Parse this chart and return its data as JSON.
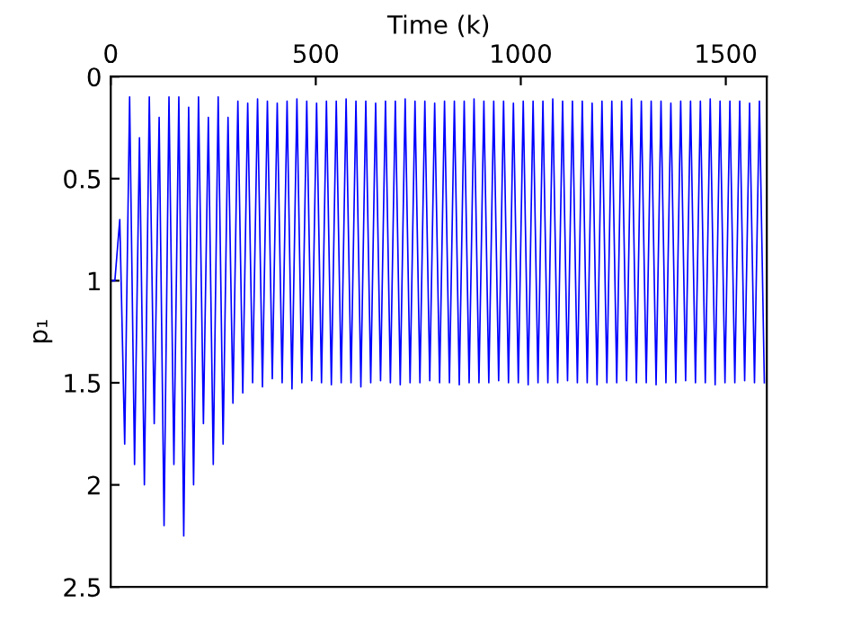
{
  "chart_data": {
    "type": "line",
    "xlabel": "Time (k)",
    "ylabel": "p₁",
    "xlim": [
      0,
      1600
    ],
    "xticks": [
      0,
      500,
      1000,
      1500
    ],
    "ylim": [
      2.5,
      0
    ],
    "yticks": [
      0,
      0.5,
      1,
      1.5,
      2,
      2.5
    ],
    "grid": false,
    "legend": false,
    "line_style": "solid",
    "marker": "none",
    "series": [
      {
        "color": "#0000ff",
        "x": [
          0,
          10,
          22,
          34,
          46,
          58,
          70,
          82,
          94,
          106,
          118,
          130,
          142,
          154,
          166,
          178,
          190,
          202,
          214,
          226,
          238,
          250,
          262,
          274,
          286,
          298,
          310,
          322,
          334,
          346,
          358,
          370,
          382,
          394,
          406,
          418,
          430,
          442,
          454,
          466,
          478,
          490,
          502,
          514,
          526,
          538,
          550,
          562,
          574,
          586,
          598,
          610,
          622,
          634,
          646,
          658,
          670,
          682,
          694,
          706,
          718,
          730,
          742,
          754,
          766,
          778,
          790,
          802,
          814,
          826,
          838,
          850,
          862,
          874,
          886,
          898,
          910,
          922,
          934,
          946,
          958,
          970,
          982,
          994,
          1006,
          1018,
          1030,
          1042,
          1054,
          1066,
          1078,
          1090,
          1102,
          1114,
          1126,
          1138,
          1150,
          1162,
          1174,
          1186,
          1198,
          1210,
          1222,
          1234,
          1246,
          1258,
          1270,
          1282,
          1294,
          1306,
          1318,
          1330,
          1342,
          1354,
          1366,
          1378,
          1390,
          1402,
          1414,
          1426,
          1438,
          1450,
          1462,
          1474,
          1486,
          1498,
          1510,
          1522,
          1534,
          1546,
          1558,
          1570,
          1582,
          1594
        ],
        "values": [
          1.0,
          1.0,
          0.7,
          1.8,
          0.1,
          1.9,
          0.3,
          2.0,
          0.1,
          1.7,
          0.2,
          2.2,
          0.1,
          1.9,
          0.1,
          2.25,
          0.15,
          2.0,
          0.1,
          1.7,
          0.2,
          1.9,
          0.1,
          1.8,
          0.2,
          1.6,
          0.12,
          1.55,
          0.13,
          1.5,
          0.11,
          1.52,
          0.12,
          1.48,
          0.13,
          1.5,
          0.12,
          1.53,
          0.11,
          1.5,
          0.12,
          1.49,
          0.13,
          1.5,
          0.12,
          1.51,
          0.12,
          1.5,
          0.11,
          1.5,
          0.12,
          1.52,
          0.12,
          1.5,
          0.13,
          1.49,
          0.12,
          1.5,
          0.12,
          1.51,
          0.11,
          1.5,
          0.12,
          1.5,
          0.12,
          1.49,
          0.13,
          1.5,
          0.12,
          1.5,
          0.12,
          1.51,
          0.12,
          1.5,
          0.11,
          1.5,
          0.12,
          1.5,
          0.12,
          1.49,
          0.12,
          1.5,
          0.13,
          1.5,
          0.12,
          1.51,
          0.12,
          1.5,
          0.12,
          1.5,
          0.11,
          1.5,
          0.12,
          1.49,
          0.12,
          1.5,
          0.12,
          1.5,
          0.13,
          1.51,
          0.12,
          1.5,
          0.12,
          1.5,
          0.12,
          1.49,
          0.11,
          1.5,
          0.12,
          1.5,
          0.12,
          1.51,
          0.12,
          1.5,
          0.13,
          1.5,
          0.12,
          1.49,
          0.12,
          1.5,
          0.12,
          1.5,
          0.11,
          1.51,
          0.12,
          1.5,
          0.12,
          1.5,
          0.12,
          1.49,
          0.13,
          1.5,
          0.12,
          1.5
        ]
      }
    ]
  }
}
